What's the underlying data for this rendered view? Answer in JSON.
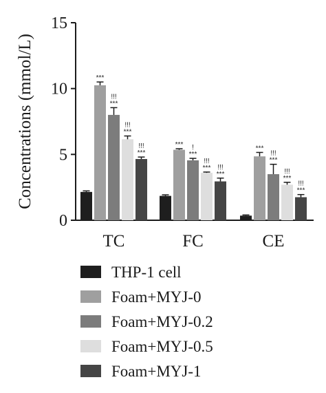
{
  "chart_data": {
    "type": "bar",
    "ylabel": "Concentrations (mmol/L)",
    "ylim": [
      0,
      15
    ],
    "yticks": [
      "0",
      "5",
      "10",
      "15"
    ],
    "categories": [
      "TC",
      "FC",
      "CE"
    ],
    "series": [
      {
        "name": "THP-1 cell",
        "color": "#1e1e1e",
        "values": [
          2.15,
          1.85,
          0.35
        ],
        "errors": [
          0.08,
          0.08,
          0.05
        ],
        "annotations": [
          [],
          [],
          []
        ]
      },
      {
        "name": "Foam+MYJ-0",
        "color": "#9f9f9f",
        "values": [
          10.25,
          5.35,
          4.85
        ],
        "errors": [
          0.25,
          0.08,
          0.3
        ],
        "annotations": [
          [
            "***"
          ],
          [
            "***"
          ],
          [
            "***"
          ]
        ]
      },
      {
        "name": "Foam+MYJ-0.2",
        "color": "#7c7c7c",
        "values": [
          8.0,
          4.55,
          3.5
        ],
        "errors": [
          0.55,
          0.15,
          0.75
        ],
        "annotations": [
          [
            "!!!",
            "***"
          ],
          [
            "!",
            "***"
          ],
          [
            "!!!",
            "***"
          ]
        ]
      },
      {
        "name": "Foam+MYJ-0.5",
        "color": "#dedede",
        "values": [
          6.15,
          3.6,
          2.7
        ],
        "errors": [
          0.25,
          0.06,
          0.18
        ],
        "annotations": [
          [
            "!!!",
            "***"
          ],
          [
            "!!!",
            "***"
          ],
          [
            "!!!",
            "***"
          ]
        ]
      },
      {
        "name": "Foam+MYJ-1",
        "color": "#454545",
        "values": [
          4.65,
          2.95,
          1.75
        ],
        "errors": [
          0.15,
          0.25,
          0.2
        ],
        "annotations": [
          [
            "!!!",
            "***"
          ],
          [
            "!!!",
            "***"
          ],
          [
            "!!!",
            "***"
          ]
        ]
      }
    ],
    "legend_position": "bottom-center",
    "grid": false
  }
}
